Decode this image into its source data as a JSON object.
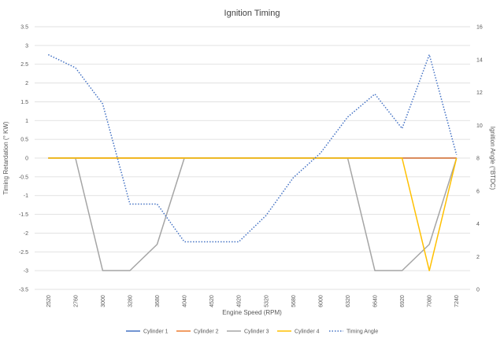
{
  "chart_data": {
    "type": "line",
    "title": "Ignition Timing",
    "xlabel": "Engine Speed (RPM)",
    "ylabel": "Timing Retardation (° KW)",
    "y2label": "Ignition Angle (°BTDC)",
    "categories": [
      "2520",
      "2760",
      "3000",
      "3280",
      "3680",
      "4040",
      "4520",
      "4920",
      "5320",
      "5680",
      "6000",
      "6320",
      "6640",
      "6920",
      "7080",
      "7240"
    ],
    "ylim": [
      -3.5,
      3.5
    ],
    "yticks": [
      "3.5",
      "3",
      "2.5",
      "2",
      "1.5",
      "1",
      "0.5",
      "0",
      "-0.5",
      "-1",
      "-1.5",
      "-2",
      "-2.5",
      "-3",
      "-3.5"
    ],
    "y2lim": [
      0,
      16
    ],
    "y2ticks": [
      "0",
      "2",
      "4",
      "6",
      "8",
      "10",
      "12",
      "14",
      "16"
    ],
    "grid": "horizontal",
    "legend_position": "bottom",
    "series": [
      {
        "name": "Cylinder 1",
        "axis": "left",
        "color": "#4472c4",
        "style": "solid",
        "values": [
          0,
          0,
          0,
          0,
          0,
          0,
          0,
          0,
          0,
          0,
          0,
          0,
          0,
          0,
          0,
          0
        ]
      },
      {
        "name": "Cylinder 2",
        "axis": "left",
        "color": "#ed7d31",
        "style": "solid",
        "values": [
          0,
          0,
          0,
          0,
          0,
          0,
          0,
          0,
          0,
          0,
          0,
          0,
          0,
          0,
          0,
          0
        ]
      },
      {
        "name": "Cylinder 3",
        "axis": "left",
        "color": "#a5a5a5",
        "style": "solid",
        "values": [
          0,
          0,
          -3,
          -3,
          -2.3,
          0,
          0,
          0,
          0,
          0,
          0,
          0,
          -3,
          -3,
          -2.3,
          0
        ]
      },
      {
        "name": "Cylinder 4",
        "axis": "left",
        "color": "#ffc000",
        "style": "solid",
        "values": [
          0,
          0,
          0,
          0,
          0,
          0,
          0,
          0,
          0,
          0,
          0,
          0,
          0,
          0,
          -3,
          0
        ]
      },
      {
        "name": "Timing Angle",
        "axis": "right",
        "color": "#4472c4",
        "style": "dotted",
        "values": [
          14.3,
          13.5,
          11.3,
          5.2,
          5.2,
          2.9,
          2.9,
          2.9,
          4.5,
          6.8,
          8.3,
          10.5,
          11.9,
          9.8,
          14.3,
          8.2
        ]
      }
    ]
  }
}
